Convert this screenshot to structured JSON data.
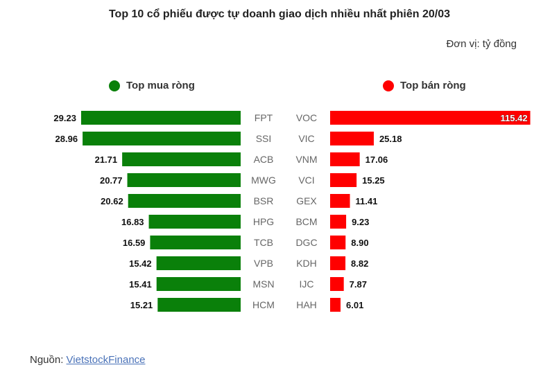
{
  "title": "Top 10 cổ phiếu được tự doanh giao dịch nhiều nhất phiên 20/03",
  "unit": "Đơn vị: tỷ đồng",
  "source": {
    "label": "Nguồn: ",
    "link_text": "VietstockFinance"
  },
  "colors": {
    "buy": "#0a800a",
    "sell": "#ff0000",
    "ticker_text": "#666666"
  },
  "chart_data": {
    "type": "bar",
    "title": "Top 10 cổ phiếu được tự doanh giao dịch nhiều nhất phiên 20/03",
    "unit": "Đơn vị: tỷ đồng",
    "series": [
      {
        "name": "Top mua ròng",
        "color": "#0a800a",
        "categories": [
          "FPT",
          "SSI",
          "ACB",
          "MWG",
          "BSR",
          "HPG",
          "TCB",
          "VPB",
          "MSN",
          "HCM"
        ],
        "values": [
          29.23,
          28.96,
          21.71,
          20.77,
          20.62,
          16.83,
          16.59,
          15.42,
          15.41,
          15.21
        ],
        "labels": [
          "29.23",
          "28.96",
          "21.71",
          "20.77",
          "20.62",
          "16.83",
          "16.59",
          "15.42",
          "15.41",
          "15.21"
        ]
      },
      {
        "name": "Top bán ròng",
        "color": "#ff0000",
        "categories": [
          "VOC",
          "VIC",
          "VNM",
          "VCI",
          "GEX",
          "BCM",
          "DGC",
          "KDH",
          "IJC",
          "HAH"
        ],
        "values": [
          115.42,
          25.18,
          17.06,
          15.25,
          11.41,
          9.23,
          8.9,
          8.82,
          7.87,
          6.01
        ],
        "labels": [
          "115.42",
          "25.18",
          "17.06",
          "15.25",
          "11.41",
          "9.23",
          "8.90",
          "8.82",
          "7.87",
          "6.01"
        ]
      }
    ]
  }
}
